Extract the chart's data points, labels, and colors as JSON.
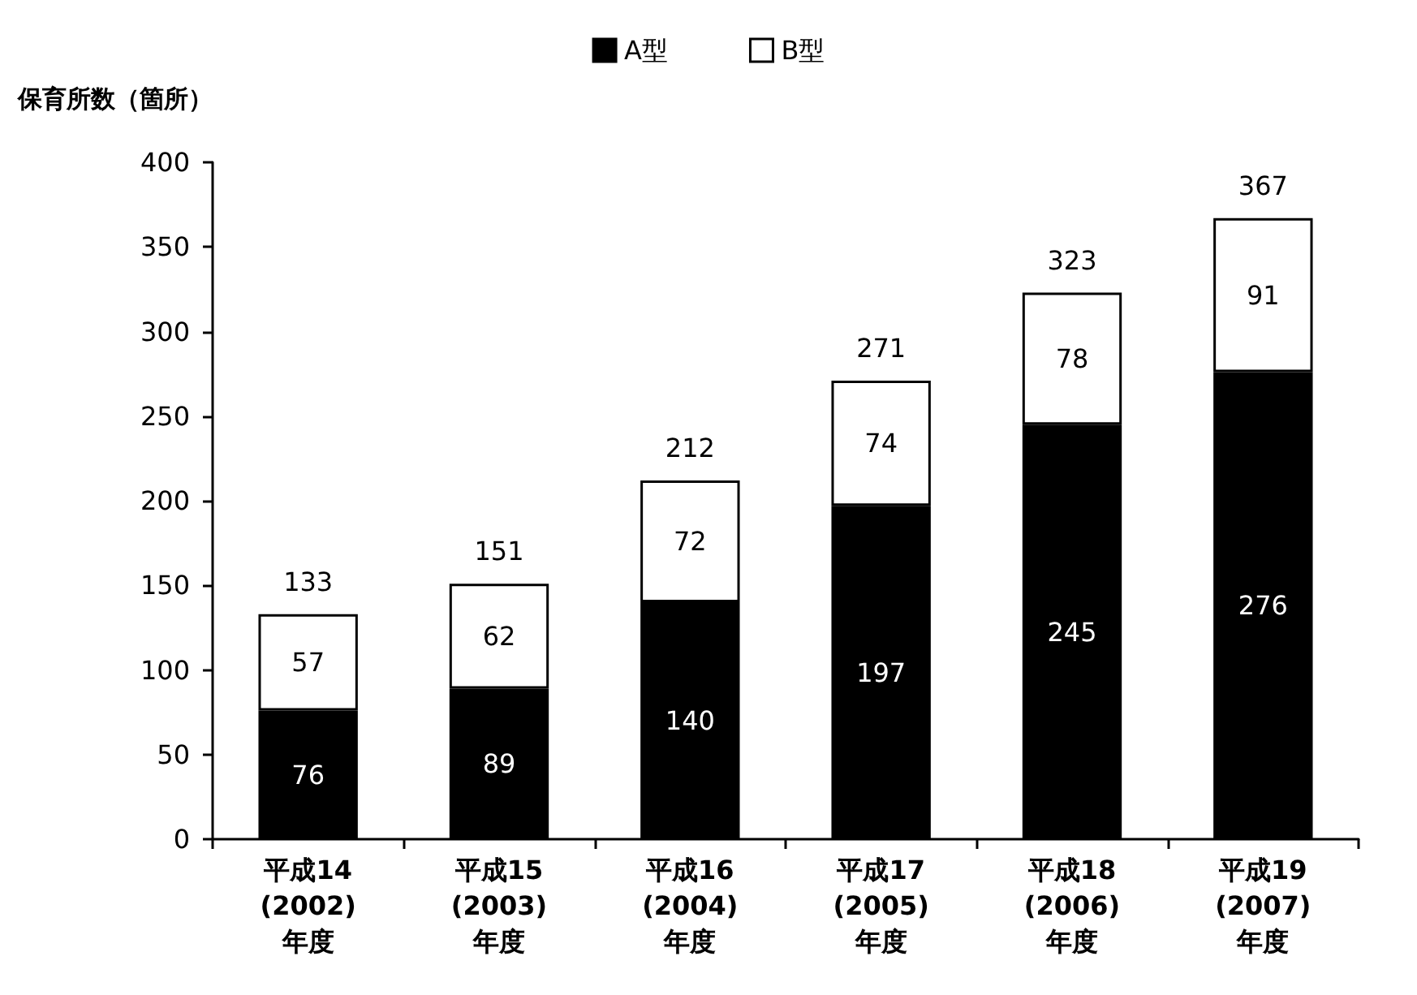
{
  "chart_data": {
    "type": "bar",
    "stacked": true,
    "ylabel": "保育所数（箇所）",
    "categories": [
      "平成14\n(2002)\n年度",
      "平成15\n(2003)\n年度",
      "平成16\n(2004)\n年度",
      "平成17\n(2005)\n年度",
      "平成18\n(2006)\n年度",
      "平成19\n(2007)\n年度"
    ],
    "series": [
      {
        "name": "A型",
        "color": "#000000",
        "values": [
          76,
          89,
          140,
          197,
          245,
          276
        ]
      },
      {
        "name": "B型",
        "color": "#ffffff",
        "values": [
          57,
          62,
          72,
          74,
          78,
          91
        ]
      }
    ],
    "totals": [
      "133",
      "151",
      "212",
      "271",
      "323",
      "367"
    ],
    "data_labels": true,
    "ylim": [
      0,
      400
    ],
    "yticks": [
      0,
      50,
      100,
      150,
      200,
      250,
      300,
      350,
      400
    ],
    "grid": false,
    "legend": "top"
  }
}
